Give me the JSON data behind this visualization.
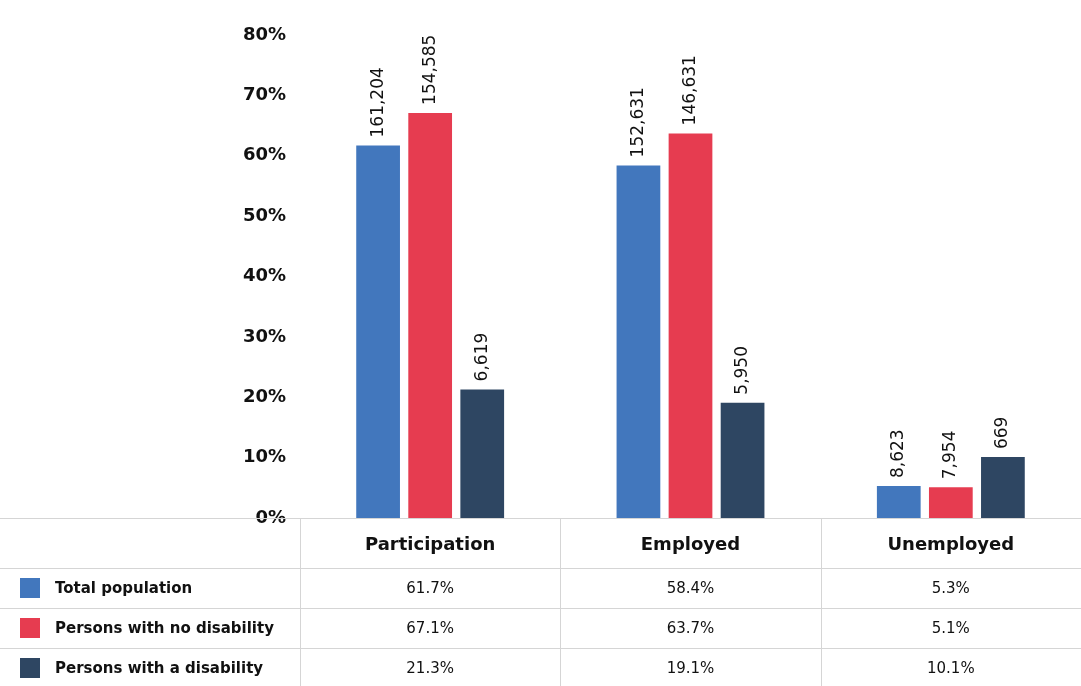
{
  "chart_data": {
    "type": "bar",
    "categories": [
      "Participation",
      "Employed",
      "Unemployed"
    ],
    "series": [
      {
        "name": "Total population",
        "color": "#4277bd",
        "values": [
          61.7,
          58.4,
          5.3
        ],
        "value_labels": [
          "61.7%",
          "58.4%",
          "5.3%"
        ]
      },
      {
        "name": "Persons with no disability",
        "color": "#e63c50",
        "values": [
          67.1,
          63.7,
          5.1
        ],
        "value_labels": [
          "67.1%",
          "63.7%",
          "5.1%"
        ]
      },
      {
        "name": "Persons with a disability",
        "color": "#2e4662",
        "values": [
          21.3,
          19.1,
          10.1
        ],
        "value_labels": [
          "21.3%",
          "19.1%",
          "10.1%"
        ]
      }
    ],
    "annotations": [
      "161,204",
      "154,585",
      "6,619",
      "152,631",
      "146,631",
      "5,950",
      "8,623",
      "7,954",
      "669"
    ],
    "data_labels": true,
    "ylim": [
      0,
      80
    ],
    "yticks": [
      {
        "value": 0,
        "label": "0%"
      },
      {
        "value": 10,
        "label": "10%"
      },
      {
        "value": 20,
        "label": "20%"
      },
      {
        "value": 30,
        "label": "30%"
      },
      {
        "value": 40,
        "label": "40%"
      },
      {
        "value": 50,
        "label": "50%"
      },
      {
        "value": 60,
        "label": "60%"
      },
      {
        "value": 70,
        "label": "70%"
      },
      {
        "value": 80,
        "label": "80%"
      }
    ],
    "legend": "bottom",
    "grid": false
  }
}
